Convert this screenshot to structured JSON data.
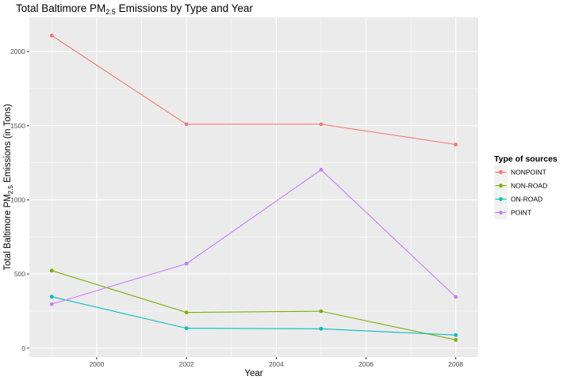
{
  "chart_data": {
    "type": "line",
    "title": "Total Baltimore  PM",
    "title_sub": "2.5",
    "title_rest": " Emissions by Type and Year",
    "xlabel": "Year",
    "ylabel": "Total Baltimore  PM",
    "ylabel_sub": "2.5",
    "ylabel_rest": " Emissions (in Tons)",
    "xlim": [
      1998.5,
      2008.5
    ],
    "ylim": [
      -60,
      2230
    ],
    "x_ticks": [
      2000,
      2002,
      2004,
      2006,
      2008
    ],
    "x_tick_labels": [
      "2000",
      "2002",
      "2004",
      "2006",
      "2008"
    ],
    "y_ticks": [
      0,
      500,
      1000,
      1500,
      2000
    ],
    "y_tick_labels": [
      "0",
      "500",
      "1000",
      "1500",
      "2000"
    ],
    "x_minor": [
      1999,
      2001,
      2003,
      2005,
      2007
    ],
    "y_minor": [
      250,
      750,
      1250,
      1750
    ],
    "grid": true,
    "legend_title": "Type of sources",
    "legend_position": "right",
    "x": [
      1999,
      2002,
      2005,
      2008
    ],
    "series": [
      {
        "name": "NONPOINT",
        "color": "#F8766D",
        "values": [
          2107.6,
          1509.5,
          1509.5,
          1373.2
        ]
      },
      {
        "name": "NON-ROAD",
        "color": "#7CAE00",
        "values": [
          522.9,
          240.8,
          248.9,
          55.8
        ]
      },
      {
        "name": "ON-ROAD",
        "color": "#00BFC4",
        "values": [
          346.8,
          134.3,
          130.4,
          88.3
        ]
      },
      {
        "name": "POINT",
        "color": "#C77CFF",
        "values": [
          296.8,
          569.3,
          1202.5,
          344.98
        ]
      }
    ]
  }
}
